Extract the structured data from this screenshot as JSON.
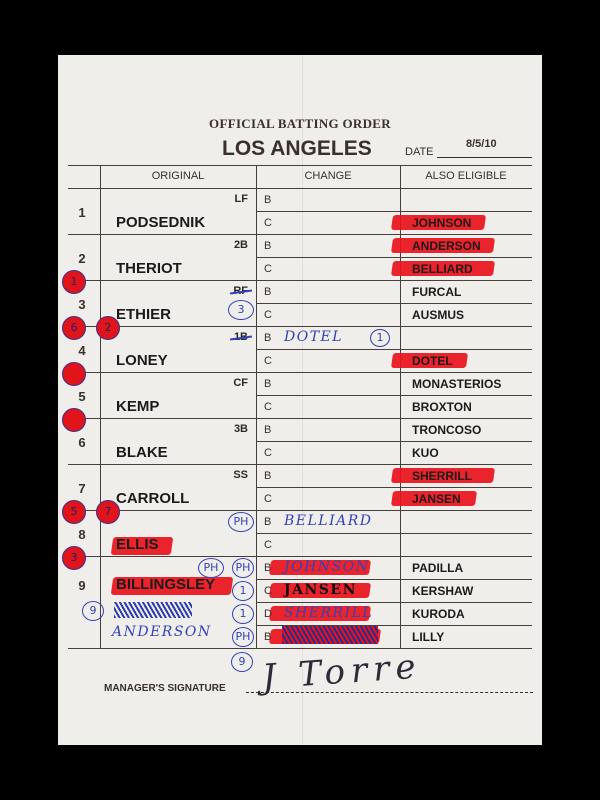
{
  "card": {
    "title": "OFFICIAL BATTING ORDER",
    "team": "LOS ANGELES",
    "date_label": "DATE",
    "date_value": "8/5/10",
    "headers": {
      "original": "ORIGINAL",
      "change": "CHANGE",
      "also_eligible": "ALSO ELIGIBLE"
    },
    "signature_label": "MANAGER'S SIGNATURE",
    "signature": "J Torre"
  },
  "colors": {
    "highlighter": "#e8121b",
    "ink_blue": "#3142b8",
    "card": "#efeeea",
    "background": "#000000"
  },
  "slots": [
    {
      "num": "1",
      "pos": "LF",
      "name": "PODSEDNIK",
      "name_highlight": false,
      "marks": [],
      "subs": [
        {
          "code": "B",
          "change": "",
          "elig": "",
          "elig_highlight": false
        },
        {
          "code": "C",
          "change": "",
          "elig": "JOHNSON",
          "elig_highlight": true
        }
      ]
    },
    {
      "num": "2",
      "pos": "2B",
      "name": "THERIOT",
      "name_highlight": false,
      "marks": [],
      "subs": [
        {
          "code": "B",
          "change": "",
          "elig": "ANDERSON",
          "elig_highlight": true
        },
        {
          "code": "C",
          "change": "",
          "elig": "BELLIARD",
          "elig_highlight": true
        }
      ]
    },
    {
      "num": "3",
      "pos": "RF",
      "pos_struck": true,
      "pos_note": "3",
      "name": "ETHIER",
      "name_highlight": false,
      "marks": [
        "1"
      ],
      "subs": [
        {
          "code": "B",
          "change": "",
          "elig": "FURCAL",
          "elig_highlight": false
        },
        {
          "code": "C",
          "change": "",
          "elig": "AUSMUS",
          "elig_highlight": false
        }
      ]
    },
    {
      "num": "4",
      "pos": "1B",
      "pos_struck": true,
      "name": "LONEY",
      "name_highlight": false,
      "marks": [
        "6",
        "2"
      ],
      "subs": [
        {
          "code": "B",
          "change": "DOTEL",
          "change_note": "1",
          "elig": "",
          "elig_highlight": false
        },
        {
          "code": "C",
          "change": "",
          "elig": "DOTEL",
          "elig_highlight": true
        }
      ]
    },
    {
      "num": "5",
      "pos": "CF",
      "name": "KEMP",
      "name_highlight": false,
      "marks": [
        ""
      ],
      "subs": [
        {
          "code": "B",
          "change": "",
          "elig": "MONASTERIOS",
          "elig_highlight": false
        },
        {
          "code": "C",
          "change": "",
          "elig": "BROXTON",
          "elig_highlight": false
        }
      ]
    },
    {
      "num": "6",
      "pos": "3B",
      "name": "BLAKE",
      "name_highlight": false,
      "marks": [
        ""
      ],
      "subs": [
        {
          "code": "B",
          "change": "",
          "elig": "TRONCOSO",
          "elig_highlight": false
        },
        {
          "code": "C",
          "change": "",
          "elig": "KUO",
          "elig_highlight": false
        }
      ]
    },
    {
      "num": "7",
      "pos": "SS",
      "name": "CARROLL",
      "name_highlight": false,
      "marks": [],
      "subs": [
        {
          "code": "B",
          "change": "",
          "elig": "SHERRILL",
          "elig_highlight": true
        },
        {
          "code": "C",
          "change": "",
          "elig": "JANSEN",
          "elig_highlight": true
        }
      ]
    },
    {
      "num": "8",
      "pos": "",
      "pos_note": "PH",
      "name": "ELLIS",
      "name_highlight": true,
      "marks": [
        "5",
        "7"
      ],
      "subs": [
        {
          "code": "B",
          "change": "BELLIARD",
          "elig": "",
          "elig_highlight": false
        },
        {
          "code": "C",
          "change": "",
          "elig": "",
          "elig_highlight": false
        }
      ]
    },
    {
      "num": "9",
      "pos": "",
      "pos_note": "PH",
      "name": "BILLINGSLEY",
      "name_highlight": true,
      "marks": [
        "3"
      ],
      "subs": [
        {
          "code": "B",
          "change": "JOHNSON",
          "change_highlight": true,
          "note": "PH",
          "elig": "PADILLA",
          "elig_highlight": false
        },
        {
          "code": "C",
          "change": "JANSEN",
          "change_highlight": true,
          "note": "1",
          "elig": "KERSHAW",
          "elig_highlight": false
        },
        {
          "code": "D",
          "change": "SHERRILL",
          "change_highlight": true,
          "note": "1",
          "elig": "KURODA",
          "elig_highlight": false
        },
        {
          "code": "B",
          "change": "",
          "change_highlight": true,
          "note": "PH",
          "elig": "LILLY",
          "elig_highlight": false
        }
      ]
    }
  ],
  "extra_entries": {
    "circle_note": "9",
    "substitute_name": "ANDERSON",
    "bottom_note": "9"
  }
}
